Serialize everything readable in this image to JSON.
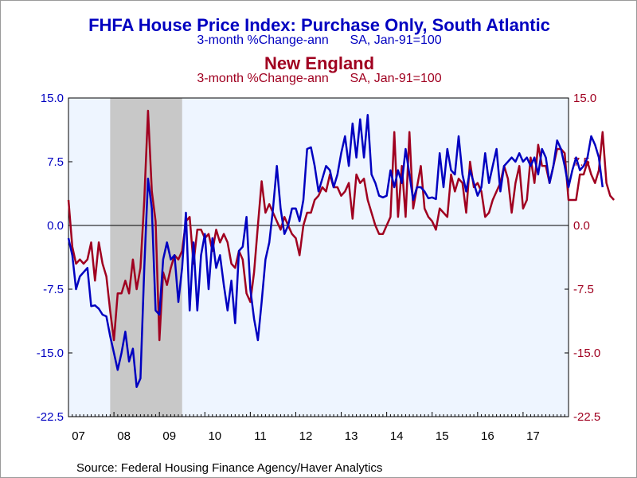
{
  "header": {
    "title_south_atlantic": "FHFA House Price Index: Purchase Only, South Atlantic",
    "subtitle_south_atlantic": "3-month %Change-ann      SA, Jan-91=100",
    "title_new_england": "New England",
    "subtitle_new_england": "3-month %Change-ann      SA, Jan-91=100"
  },
  "footer": {
    "source": "Source:  Federal Housing Finance Agency/Haver Analytics"
  },
  "colors": {
    "south_atlantic": "#0000c0",
    "new_england": "#a00020",
    "plot_background": "#eef5ff",
    "recession_shade": "#c8c8c8"
  },
  "chart_data": {
    "type": "line",
    "title": "FHFA House Price Index: Purchase Only, South Atlantic / New England",
    "ylim": [
      -22.5,
      15.0
    ],
    "yticks_left": [
      "15.0",
      "7.5",
      "0.0",
      "-7.5",
      "-15.0",
      "-22.5"
    ],
    "yticks_right": [
      "15.0",
      "7.5",
      "0.0",
      "-7.5",
      "-15.0",
      "-22.5"
    ],
    "ytick_values": [
      15.0,
      7.5,
      0.0,
      -7.5,
      -15.0,
      -22.5
    ],
    "xlim": [
      2007.0,
      2018.0
    ],
    "xticks": [
      "07",
      "08",
      "09",
      "10",
      "11",
      "12",
      "13",
      "14",
      "15",
      "16",
      "17"
    ],
    "xtick_values": [
      2007,
      2008,
      2009,
      2010,
      2011,
      2012,
      2013,
      2014,
      2015,
      2016,
      2017
    ],
    "zero_line": true,
    "grid": false,
    "recession": [
      2007.917,
      2009.5
    ],
    "series": [
      {
        "name": "South Atlantic",
        "color": "#0000c0",
        "x_start": 2007.0,
        "step_months": 1,
        "values": [
          -1.5,
          -3.5,
          -7.5,
          -6,
          -5.5,
          -5,
          -9.5,
          -9.4,
          -9.8,
          -10.5,
          -10.7,
          -13,
          -15,
          -17,
          -15,
          -12.5,
          -16,
          -14.5,
          -19,
          -18,
          -5,
          5.5,
          2,
          -10,
          -10.5,
          -4,
          -2,
          -4,
          -3.5,
          -9,
          -5,
          1.5,
          -10,
          -2,
          -10,
          -3.5,
          -1,
          -7.5,
          -1.5,
          -5,
          -3.5,
          -7,
          -10,
          -6.5,
          -11.5,
          -3,
          -2.5,
          1,
          -7.5,
          -11,
          -13.5,
          -9,
          -4,
          -2,
          2,
          7,
          2,
          -1,
          0,
          2,
          2,
          0.5,
          3,
          9,
          9.2,
          7,
          4,
          5.5,
          7,
          6.5,
          4.5,
          6,
          8.5,
          10.5,
          7,
          12,
          8,
          12.5,
          8,
          13,
          6,
          5,
          3.5,
          3.3,
          3.5,
          6.5,
          4.5,
          6.5,
          5,
          9,
          6,
          3,
          4.5,
          4.5,
          4,
          3.2,
          3.3,
          3.1,
          8.5,
          4.5,
          9,
          6.5,
          6,
          10.5,
          6,
          4,
          6.5,
          5,
          3.5,
          4.5,
          8.5,
          5,
          7,
          9,
          4,
          7,
          7.5,
          8,
          7.5,
          8.5,
          7.5,
          8,
          7,
          8,
          6,
          9,
          8,
          5,
          7,
          10,
          9,
          7,
          4.5,
          6.5,
          8,
          6.5,
          7,
          8,
          10.5,
          9.5,
          8,
          4.5
        ]
      },
      {
        "name": "New England",
        "color": "#a00020",
        "x_start": 2007.0,
        "step_months": 1,
        "values": [
          3,
          -2.5,
          -4.5,
          -4,
          -4.5,
          -4,
          -2,
          -6.5,
          -2,
          -4.5,
          -6,
          -10,
          -13.5,
          -8,
          -8,
          -6.5,
          -8,
          -4,
          -7.5,
          -5,
          3,
          13.5,
          4,
          0.5,
          -13.5,
          -5.5,
          -7,
          -5,
          -3.5,
          -4,
          -3,
          0.5,
          1,
          -4.5,
          -0.5,
          -0.5,
          -1.5,
          -1,
          -3,
          -0.5,
          -2,
          -1,
          -2,
          -4.5,
          -5,
          -3,
          -4,
          -8,
          -9,
          -5.5,
          0,
          5.2,
          1.5,
          2.5,
          1.5,
          0.5,
          -0.5,
          1,
          0,
          -1,
          -1.5,
          -3.5,
          0,
          1.5,
          1.5,
          3,
          3.5,
          4.5,
          4,
          6,
          4.5,
          4.5,
          3.5,
          4,
          5,
          0.8,
          6,
          5,
          5.5,
          3,
          1.5,
          0,
          -1,
          -1,
          0,
          1,
          11,
          1,
          7,
          1,
          11,
          2,
          4.5,
          7,
          2,
          1,
          0.5,
          -0.5,
          2,
          1.5,
          1,
          6,
          4,
          5.5,
          5,
          1.5,
          7.5,
          4.5,
          5,
          4,
          1,
          1.5,
          3,
          4,
          5,
          7,
          5.5,
          1.5,
          5,
          7,
          2,
          3,
          8,
          5,
          9.5,
          7,
          7,
          5,
          7,
          9,
          9,
          8.5,
          3,
          3,
          3,
          6,
          6,
          7.5,
          6,
          5,
          6.5,
          11,
          5,
          3.5,
          3
        ]
      }
    ]
  }
}
